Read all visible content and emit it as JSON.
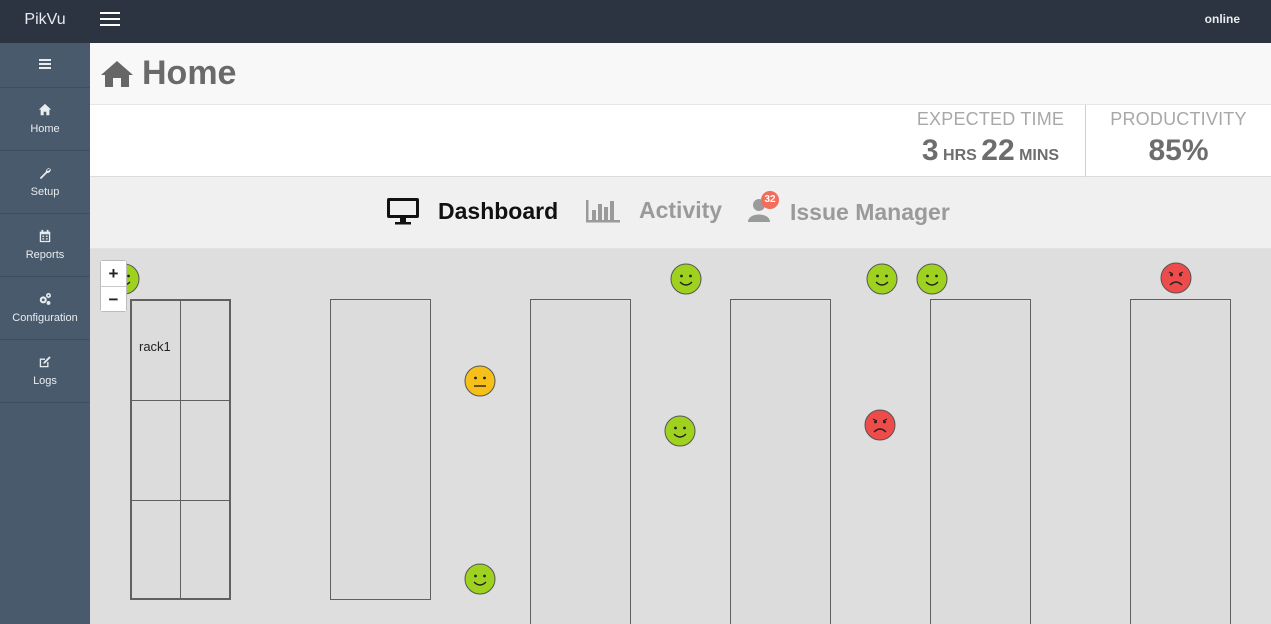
{
  "app": {
    "brand": "PikVu",
    "status": "online"
  },
  "sidebar": {
    "items": [
      {
        "label": "Home",
        "icon": "home-icon"
      },
      {
        "label": "Setup",
        "icon": "wrench-icon"
      },
      {
        "label": "Reports",
        "icon": "calendar-icon"
      },
      {
        "label": "Configuration",
        "icon": "gears-icon"
      },
      {
        "label": "Logs",
        "icon": "edit-icon"
      }
    ]
  },
  "header": {
    "title": "Home"
  },
  "stats": {
    "expected_time": {
      "label": "EXPECTED TIME",
      "hours": "3",
      "hours_unit": "HRS",
      "minutes": "22",
      "minutes_unit": "MINS"
    },
    "productivity": {
      "label": "PRODUCTIVITY",
      "value": "85%"
    }
  },
  "tabs": [
    {
      "label": "Dashboard",
      "active": true,
      "icon": "monitor-icon"
    },
    {
      "label": "Activity",
      "active": false,
      "icon": "bar-chart-icon"
    },
    {
      "label": "Issue Manager",
      "active": false,
      "icon": "user-icon",
      "badge": "32"
    }
  ],
  "map": {
    "zoom_in": "+",
    "zoom_out": "−",
    "rack_label": "rack1",
    "faces": [
      {
        "mood": "happy"
      },
      {
        "mood": "happy"
      },
      {
        "mood": "happy"
      },
      {
        "mood": "happy"
      },
      {
        "mood": "sad"
      },
      {
        "mood": "neutral"
      },
      {
        "mood": "happy"
      },
      {
        "mood": "sad"
      },
      {
        "mood": "happy"
      }
    ]
  },
  "colors": {
    "happy": "#9fd21f",
    "neutral": "#f6c019",
    "sad": "#ee4b4b",
    "topbar": "#2b3440",
    "sidebar": "#4a5a6d"
  }
}
